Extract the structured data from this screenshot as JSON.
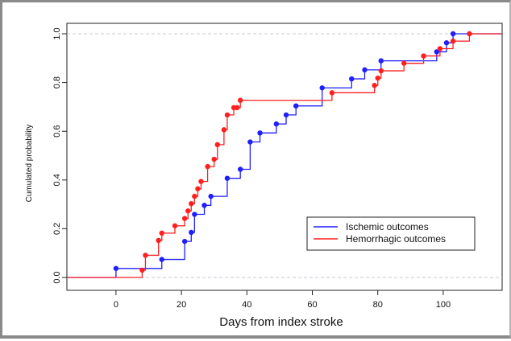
{
  "chart_data": {
    "type": "line",
    "step": true,
    "xlabel": "Days from index stroke",
    "ylabel": "Cumulated probability",
    "xlim": [
      -15,
      118
    ],
    "ylim": [
      0,
      1.0
    ],
    "x_ticks": [
      0,
      20,
      40,
      60,
      80,
      100
    ],
    "y_ticks": [
      "0.0",
      "0.2",
      "0.4",
      "0.6",
      "0.8",
      "1.0"
    ],
    "reference_lines": [
      0.0,
      1.0
    ],
    "legend_position": "bottom-right",
    "series": [
      {
        "name": "Ischemic outcomes",
        "color": "#1f1fff",
        "x": [
          0,
          14,
          21,
          23,
          24,
          27,
          29,
          34,
          38,
          41,
          44,
          49,
          52,
          55,
          63,
          72,
          76,
          81,
          98,
          101,
          103
        ],
        "y": [
          0.037,
          0.074,
          0.148,
          0.185,
          0.259,
          0.296,
          0.333,
          0.407,
          0.444,
          0.556,
          0.593,
          0.63,
          0.667,
          0.704,
          0.778,
          0.815,
          0.852,
          0.889,
          0.926,
          0.963,
          1.0
        ]
      },
      {
        "name": "Hemorrhagic outcomes",
        "color": "#ff1f1f",
        "x": [
          8,
          9,
          13,
          14,
          18,
          21,
          22,
          23,
          24,
          25,
          26,
          28,
          30,
          31,
          33,
          34,
          36,
          37,
          38,
          66,
          79,
          80,
          81,
          88,
          94,
          99,
          103,
          108
        ],
        "y": [
          0.03,
          0.091,
          0.152,
          0.182,
          0.212,
          0.242,
          0.273,
          0.303,
          0.333,
          0.364,
          0.394,
          0.455,
          0.485,
          0.545,
          0.606,
          0.667,
          0.697,
          0.697,
          0.727,
          0.758,
          0.788,
          0.818,
          0.848,
          0.879,
          0.909,
          0.939,
          0.97,
          1.0
        ]
      }
    ]
  }
}
